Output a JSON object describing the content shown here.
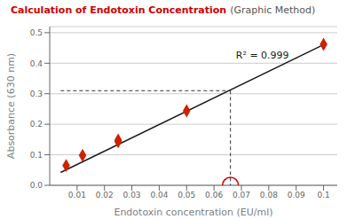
{
  "chart_data": {
    "type": "scatter",
    "title": "Calculation of Endotoxin Concentration",
    "subtitle": "(Graphic Method)",
    "title_color": "#cc0000",
    "x_label": "Endotoxin concentration (EU/ml)",
    "y_label": "Absorbance (630 nm)",
    "xlim": [
      0.0,
      0.105
    ],
    "ylim": [
      0.0,
      0.52
    ],
    "xticks": [
      0.01,
      0.02,
      0.03,
      0.04,
      0.05,
      0.06,
      0.07,
      0.08,
      0.09,
      0.1
    ],
    "yticks": [
      {
        "value": 0.0,
        "label": "0.0"
      },
      0.1,
      0.2,
      0.3,
      0.4,
      0.5
    ],
    "grid": true,
    "series": [
      {
        "type": "line",
        "color": "#1a1a1a",
        "line_style": "solid",
        "x": [
          0.004,
          0.101
        ],
        "values": [
          0.042,
          0.465
        ]
      },
      {
        "type": "scatter",
        "color": "#cc2200",
        "marker": "diamond",
        "x": [
          0.006,
          0.012,
          0.025,
          0.025,
          0.05,
          0.1
        ],
        "values": [
          0.065,
          0.098,
          0.143,
          0.148,
          0.244,
          0.462
        ]
      },
      {
        "type": "line",
        "color": "#333333",
        "line_style": "dashed",
        "x": [
          0.004,
          0.066
        ],
        "values": [
          0.31,
          0.31
        ]
      },
      {
        "type": "line",
        "color": "#333333",
        "line_style": "dashed",
        "x": [
          0.066,
          0.066
        ],
        "values": [
          0.31,
          0.0
        ]
      },
      {
        "type": "scatter",
        "color": "#cc0000",
        "marker": "circle",
        "x": [
          0.066
        ],
        "values": [
          0.0
        ]
      }
    ],
    "annotations": [
      {
        "text": "R² = 0.999",
        "x": 0.068,
        "y": 0.415,
        "color": "#1a1a1a"
      }
    ]
  }
}
